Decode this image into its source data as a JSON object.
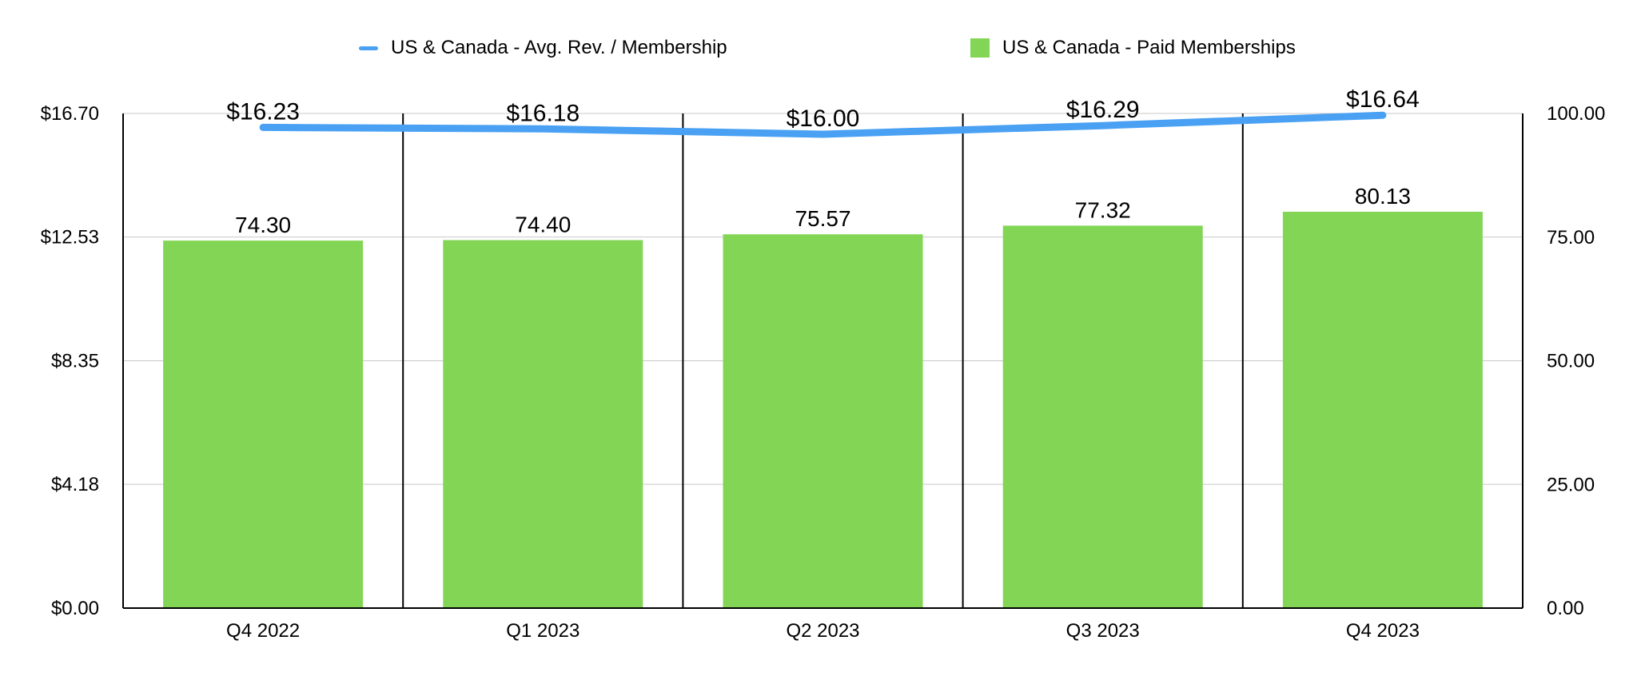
{
  "legend": {
    "line_label": "US & Canada - Avg. Rev. / Membership",
    "bar_label": "US & Canada - Paid Memberships"
  },
  "chart_data": {
    "type": "bar+line",
    "categories": [
      "Q4 2022",
      "Q1 2023",
      "Q2 2023",
      "Q3 2023",
      "Q4 2023"
    ],
    "series": [
      {
        "name": "US & Canada - Paid Memberships",
        "type": "bar",
        "axis": "right",
        "color": "#83D655",
        "values": [
          74.3,
          74.4,
          75.57,
          77.32,
          80.13
        ],
        "labels": [
          "74.30",
          "74.40",
          "75.57",
          "77.32",
          "80.13"
        ]
      },
      {
        "name": "US & Canada - Avg. Rev. / Membership",
        "type": "line",
        "axis": "left",
        "color": "#4AA1F3",
        "values": [
          16.23,
          16.18,
          16.0,
          16.29,
          16.64
        ],
        "labels": [
          "$16.23",
          "$16.18",
          "$16.00",
          "$16.29",
          "$16.64"
        ]
      }
    ],
    "y_left": {
      "range": [
        0,
        16.7
      ],
      "ticks": [
        0,
        4.18,
        8.35,
        12.53,
        16.7
      ],
      "tick_labels": [
        "$0.00",
        "$4.18",
        "$8.35",
        "$12.53",
        "$16.70"
      ]
    },
    "y_right": {
      "range": [
        0,
        100
      ],
      "ticks": [
        0,
        25,
        50,
        75,
        100
      ],
      "tick_labels": [
        "0.00",
        "25.00",
        "50.00",
        "75.00",
        "100.00"
      ]
    },
    "grid": true,
    "legend_position": "top-center"
  }
}
